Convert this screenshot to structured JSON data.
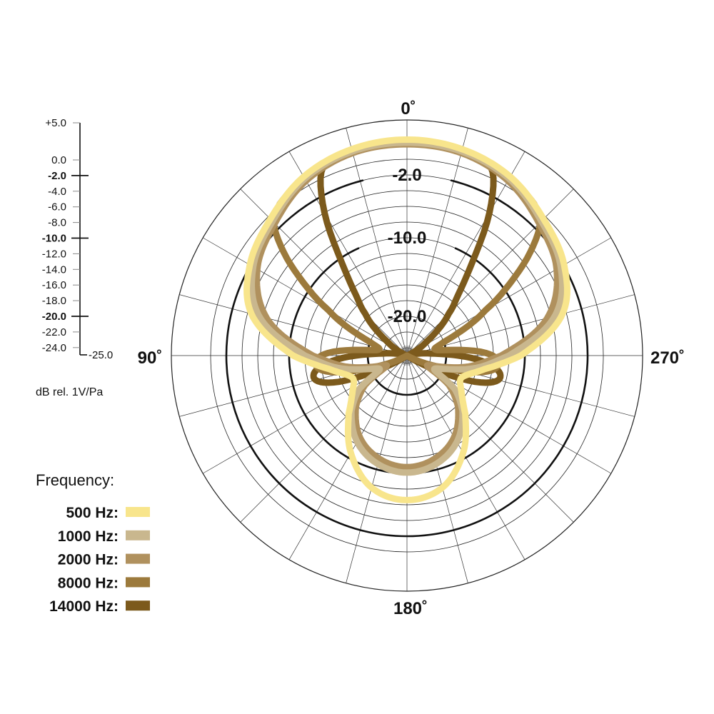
{
  "chart_data": {
    "type": "polar",
    "angle_zero": "top",
    "angle_direction": "counterclockwise",
    "angle_labels": [
      {
        "angle": 0,
        "text": "0˚"
      },
      {
        "angle": 90,
        "text": "90˚"
      },
      {
        "angle": 180,
        "text": "180˚"
      },
      {
        "angle": 270,
        "text": "270˚"
      }
    ],
    "radial_range_db": [
      -25,
      5
    ],
    "radial_grid_step_db": 2,
    "ring_labels": [
      {
        "db": -2,
        "text": "-2.0"
      },
      {
        "db": -10,
        "text": "-10.0"
      },
      {
        "db": -20,
        "text": "-20.0"
      }
    ],
    "scale_axis": {
      "ticks": [
        {
          "db": 5,
          "text": "+5.0",
          "major": false
        },
        {
          "db": 0,
          "text": "0.0",
          "major": false
        },
        {
          "db": -2,
          "text": "-2.0",
          "major": true
        },
        {
          "db": -4,
          "text": "-4.0",
          "major": false
        },
        {
          "db": -6,
          "text": "-6.0",
          "major": false
        },
        {
          "db": -8,
          "text": "-8.0",
          "major": false
        },
        {
          "db": -10,
          "text": "-10.0",
          "major": true
        },
        {
          "db": -12,
          "text": "-12.0",
          "major": false
        },
        {
          "db": -14,
          "text": "-14.0",
          "major": false
        },
        {
          "db": -16,
          "text": "-16.0",
          "major": false
        },
        {
          "db": -18,
          "text": "-18.0",
          "major": false
        },
        {
          "db": -20,
          "text": "-20.0",
          "major": true
        },
        {
          "db": -22,
          "text": "-22.0",
          "major": false
        },
        {
          "db": -24,
          "text": "-24.0",
          "major": false
        }
      ],
      "bottom_label": "-25.0",
      "unit_label": "dB rel. 1V/Pa"
    },
    "legend": {
      "title": "Frequency:",
      "placement": "bottom-left"
    },
    "symmetric": true,
    "series": [
      {
        "name": "500 Hz:",
        "color": "#f8e58c",
        "points": [
          [
            0,
            2.5
          ],
          [
            15,
            2.2
          ],
          [
            30,
            1.3
          ],
          [
            45,
            -0.4
          ],
          [
            60,
            -1.9
          ],
          [
            75,
            -4.5
          ],
          [
            90,
            -10.5
          ],
          [
            100,
            -15
          ],
          [
            112,
            -17.5
          ],
          [
            125,
            -16.5
          ],
          [
            135,
            -14.5
          ],
          [
            150,
            -10.7
          ],
          [
            165,
            -7.6
          ],
          [
            180,
            -6.6
          ]
        ]
      },
      {
        "name": "1000 Hz:",
        "color": "#c9b78e",
        "points": [
          [
            0,
            2.1
          ],
          [
            15,
            1.9
          ],
          [
            30,
            1.0
          ],
          [
            45,
            -0.8
          ],
          [
            60,
            -2.4
          ],
          [
            75,
            -5.5
          ],
          [
            90,
            -12
          ],
          [
            100,
            -16
          ],
          [
            110,
            -20
          ],
          [
            118,
            -21
          ],
          [
            125,
            -17.6
          ],
          [
            135,
            -15
          ],
          [
            150,
            -12.3
          ],
          [
            165,
            -10.7
          ],
          [
            180,
            -10.1
          ]
        ]
      },
      {
        "name": "2000 Hz:",
        "color": "#b0915e",
        "points": [
          [
            0,
            1.9
          ],
          [
            15,
            1.7
          ],
          [
            30,
            0.7
          ],
          [
            45,
            -1.2
          ],
          [
            60,
            -3
          ],
          [
            75,
            -6.5
          ],
          [
            90,
            -13
          ],
          [
            100,
            -17
          ],
          [
            110,
            -21
          ],
          [
            118,
            -22
          ],
          [
            125,
            -18.5
          ],
          [
            135,
            -15.8
          ],
          [
            150,
            -13
          ],
          [
            165,
            -11.4
          ],
          [
            180,
            -10.8
          ]
        ]
      },
      {
        "name": "8000 Hz:",
        "color": "#9c7a3c",
        "points": [
          [
            0,
            2.2
          ],
          [
            15,
            2.0
          ],
          [
            30,
            1.2
          ],
          [
            40,
            0.2
          ],
          [
            45,
            -1
          ],
          [
            50,
            -4.5
          ],
          [
            55,
            -9
          ],
          [
            60,
            -13.5
          ],
          [
            70,
            -20
          ],
          [
            80,
            -21
          ],
          [
            88,
            -15
          ],
          [
            95,
            -13.3
          ],
          [
            102,
            -15
          ],
          [
            110,
            -21
          ],
          [
            120,
            -25
          ],
          [
            180,
            -25
          ]
        ]
      },
      {
        "name": "14000 Hz:",
        "color": "#7c5a1c",
        "points": [
          [
            0,
            2.3
          ],
          [
            10,
            2.2
          ],
          [
            20,
            1.8
          ],
          [
            25,
            0.8
          ],
          [
            30,
            -4
          ],
          [
            35,
            -10.5
          ],
          [
            40,
            -14.8
          ],
          [
            45,
            -17.5
          ],
          [
            55,
            -22
          ],
          [
            70,
            -25
          ],
          [
            85,
            -22
          ],
          [
            95,
            -15
          ],
          [
            103,
            -12.8
          ],
          [
            110,
            -15
          ],
          [
            118,
            -22
          ],
          [
            125,
            -25
          ],
          [
            180,
            -25
          ]
        ]
      }
    ]
  }
}
